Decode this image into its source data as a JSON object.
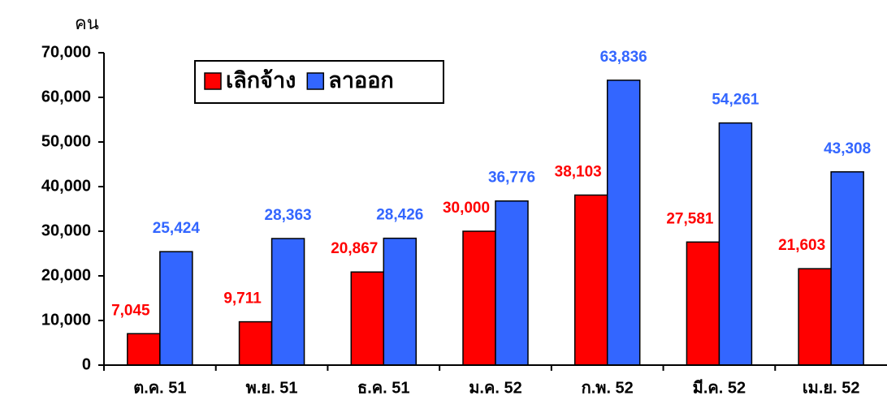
{
  "chart_data": {
    "type": "bar",
    "ylabel": "คน",
    "categories": [
      "ต.ค. 51",
      "พ.ย. 51",
      "ธ.ค. 51",
      "ม.ค. 52",
      "ก.พ. 52",
      "มี.ค. 52",
      "เม.ย. 52"
    ],
    "series": [
      {
        "name": "เลิกจ้าง",
        "color": "#ff0000",
        "values": [
          7045,
          9711,
          20867,
          30000,
          38103,
          27581,
          21603
        ],
        "value_labels": [
          "7,045",
          "9,711",
          "20,867",
          "30,000",
          "38,103",
          "27,581",
          "21,603"
        ]
      },
      {
        "name": "ลาออก",
        "color": "#3366ff",
        "values": [
          25424,
          28363,
          28426,
          36776,
          63836,
          54261,
          43308
        ],
        "value_labels": [
          "25,424",
          "28,363",
          "28,426",
          "36,776",
          "63,836",
          "54,261",
          "43,308"
        ]
      }
    ],
    "ylim": [
      0,
      70000
    ],
    "yticks": [
      0,
      {
        "value": 10000,
        "label": "10,000"
      },
      {
        "value": 20000,
        "label": "20,000"
      },
      {
        "value": 30000,
        "label": "30,000"
      },
      {
        "value": 40000,
        "label": "40,000"
      },
      {
        "value": 50000,
        "label": "50,000"
      },
      {
        "value": 60000,
        "label": "60,000"
      },
      {
        "value": 70000,
        "label": "70,000"
      }
    ],
    "legend": "upper left"
  }
}
